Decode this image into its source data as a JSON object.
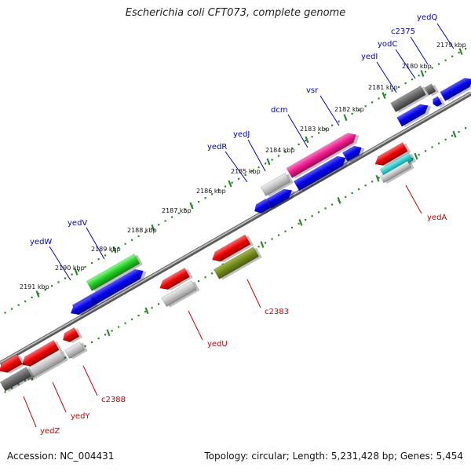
{
  "title": "Escherichia coli CFT073, complete genome",
  "footer": {
    "accession": "Accession: NC_004431",
    "topology": "Topology: circular; Length: 5,231,428 bp; Genes: 5,454"
  },
  "colors": {
    "forward_label": "#0000cc",
    "reverse_label": "#cc0000",
    "backbone": "#888888",
    "tick": "#2a8a2a"
  },
  "ticks": [
    "2179 kbp",
    "2180 kbp",
    "2181 kbp",
    "2182 kbp",
    "2183 kbp",
    "2184 kbp",
    "2185 kbp",
    "2186 kbp",
    "2187 kbp",
    "2188 kbp",
    "2189 kbp",
    "2190 kbp",
    "2191 kbp"
  ],
  "genes_top": [
    "yedQ",
    "c2375",
    "yodC",
    "yedI",
    "vsr",
    "dcm",
    "yedJ",
    "yedR",
    "yedV",
    "yedW"
  ],
  "genes_bottom": [
    "yedA",
    "c2383",
    "yedU",
    "c2388",
    "yedY",
    "yedZ"
  ]
}
